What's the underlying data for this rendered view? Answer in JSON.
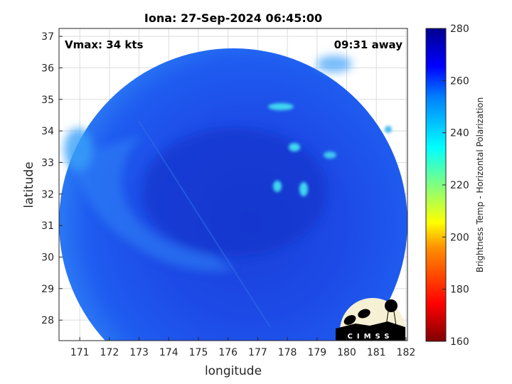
{
  "chart_data": {
    "type": "heatmap",
    "title": "Iona: 27-Sep-2024 06:45:00",
    "xlabel": "longitude",
    "ylabel": "latitude",
    "xlim": [
      170.3,
      182.05
    ],
    "ylim": [
      27.35,
      37.25
    ],
    "xticks": [
      171,
      172,
      173,
      174,
      175,
      176,
      177,
      178,
      179,
      180,
      181,
      182
    ],
    "yticks": [
      28,
      29,
      30,
      31,
      32,
      33,
      34,
      35,
      36,
      37
    ],
    "grid": true,
    "annotations": {
      "vmax": "Vmax: 34 kts",
      "away": "09:31 away"
    },
    "colorbar": {
      "label": "Brightness Temp - Horizontal Polarization",
      "range": [
        160,
        280
      ],
      "ticks": [
        160,
        180,
        200,
        220,
        240,
        260,
        280
      ],
      "colormap": "jet",
      "position": "right"
    },
    "swath": {
      "shape": "circular",
      "dominant_value_range": [
        245,
        270
      ]
    },
    "logo": "CIMSS"
  }
}
